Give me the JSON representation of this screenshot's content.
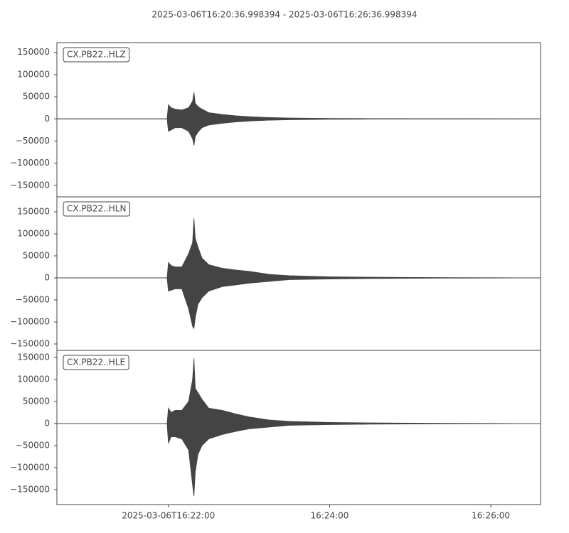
{
  "chart_data": [
    {
      "type": "area",
      "title": "2025-03-06T16:20:36.998394  -  2025-03-06T16:26:36.998394",
      "label": "CX.PB22..HLZ",
      "xlim": [
        "2025-03-06T16:20:36.998394",
        "2025-03-06T16:26:36.998394"
      ],
      "ylim": [
        -176000,
        172000
      ],
      "yticks": [
        {
          "value": -150000,
          "label": "−150000"
        },
        {
          "value": -100000,
          "label": "−100000"
        },
        {
          "value": -50000,
          "label": "−50000"
        },
        0,
        50000,
        100000,
        150000
      ],
      "x": [
        "2025-03-06T16:20:37",
        "2025-03-06T16:21:59",
        "2025-03-06T16:22:00",
        "2025-03-06T16:22:02",
        "2025-03-06T16:22:05",
        "2025-03-06T16:22:10",
        "2025-03-06T16:22:15",
        "2025-03-06T16:22:18",
        "2025-03-06T16:22:19",
        "2025-03-06T16:22:20",
        "2025-03-06T16:22:22",
        "2025-03-06T16:22:25",
        "2025-03-06T16:22:30",
        "2025-03-06T16:22:40",
        "2025-03-06T16:22:50",
        "2025-03-06T16:23:00",
        "2025-03-06T16:23:15",
        "2025-03-06T16:23:30",
        "2025-03-06T16:24:00",
        "2025-03-06T16:24:30",
        "2025-03-06T16:25:00",
        "2025-03-06T16:25:30",
        "2025-03-06T16:26:00",
        "2025-03-06T16:26:36"
      ],
      "series": [
        {
          "color": "#444444",
          "values": [
            0,
            0,
            32000,
            25000,
            22000,
            20000,
            25000,
            40000,
            60000,
            35000,
            28000,
            22000,
            14000,
            10000,
            7000,
            5000,
            3000,
            2000,
            1000,
            600,
            400,
            300,
            200,
            0
          ]
        },
        {
          "color": "#444444",
          "values": [
            0,
            0,
            -28000,
            -25000,
            -20000,
            -20000,
            -28000,
            -45000,
            -60000,
            -40000,
            -30000,
            -20000,
            -14000,
            -10000,
            -7000,
            -5000,
            -3000,
            -2000,
            -1000,
            -600,
            -400,
            -300,
            -200,
            0
          ]
        }
      ]
    },
    {
      "type": "area",
      "label": "CX.PB22..HLN",
      "xlim": [
        "2025-03-06T16:20:36.998394",
        "2025-03-06T16:26:36.998394"
      ],
      "ylim": [
        -164500,
        183900
      ],
      "yticks": [
        {
          "value": -150000,
          "label": "−150000"
        },
        {
          "value": -100000,
          "label": "−100000"
        },
        {
          "value": -50000,
          "label": "−50000"
        },
        0,
        50000,
        100000,
        150000
      ],
      "x": [
        "2025-03-06T16:20:37",
        "2025-03-06T16:21:59",
        "2025-03-06T16:22:00",
        "2025-03-06T16:22:02",
        "2025-03-06T16:22:05",
        "2025-03-06T16:22:10",
        "2025-03-06T16:22:15",
        "2025-03-06T16:22:18",
        "2025-03-06T16:22:19",
        "2025-03-06T16:22:20",
        "2025-03-06T16:22:22",
        "2025-03-06T16:22:25",
        "2025-03-06T16:22:30",
        "2025-03-06T16:22:40",
        "2025-03-06T16:22:50",
        "2025-03-06T16:23:00",
        "2025-03-06T16:23:15",
        "2025-03-06T16:23:30",
        "2025-03-06T16:24:00",
        "2025-03-06T16:24:30",
        "2025-03-06T16:25:00",
        "2025-03-06T16:25:30",
        "2025-03-06T16:26:00",
        "2025-03-06T16:26:36"
      ],
      "series": [
        {
          "color": "#444444",
          "values": [
            0,
            0,
            35000,
            28000,
            25000,
            25000,
            55000,
            80000,
            135000,
            90000,
            70000,
            45000,
            30000,
            22000,
            18000,
            15000,
            8000,
            5000,
            2500,
            1500,
            1000,
            600,
            400,
            0
          ]
        },
        {
          "color": "#444444",
          "values": [
            0,
            0,
            -30000,
            -28000,
            -25000,
            -25000,
            -70000,
            -110000,
            -115000,
            -90000,
            -60000,
            -45000,
            -30000,
            -20000,
            -16000,
            -12000,
            -8000,
            -4000,
            -2500,
            -1500,
            -1000,
            -600,
            -400,
            0
          ]
        }
      ]
    },
    {
      "type": "area",
      "label": "CX.PB22..HLE",
      "xlim": [
        "2025-03-06T16:20:36.998394",
        "2025-03-06T16:26:36.998394"
      ],
      "ylim": [
        -183900,
        166100
      ],
      "yticks": [
        {
          "value": -150000,
          "label": "−150000"
        },
        {
          "value": -100000,
          "label": "−100000"
        },
        {
          "value": -50000,
          "label": "−50000"
        },
        0,
        50000,
        100000,
        150000
      ],
      "xticks": [
        "2025-03-06T16:22:00",
        {
          "value": "2025-03-06T16:24:00",
          "label": "16:24:00"
        },
        {
          "value": "2025-03-06T16:26:00",
          "label": "16:26:00"
        }
      ],
      "x": [
        "2025-03-06T16:20:37",
        "2025-03-06T16:21:59",
        "2025-03-06T16:22:00",
        "2025-03-06T16:22:02",
        "2025-03-06T16:22:05",
        "2025-03-06T16:22:10",
        "2025-03-06T16:22:15",
        "2025-03-06T16:22:18",
        "2025-03-06T16:22:19",
        "2025-03-06T16:22:20",
        "2025-03-06T16:22:22",
        "2025-03-06T16:22:25",
        "2025-03-06T16:22:30",
        "2025-03-06T16:22:40",
        "2025-03-06T16:22:50",
        "2025-03-06T16:23:00",
        "2025-03-06T16:23:15",
        "2025-03-06T16:23:30",
        "2025-03-06T16:24:00",
        "2025-03-06T16:24:30",
        "2025-03-06T16:25:00",
        "2025-03-06T16:25:30",
        "2025-03-06T16:26:00",
        "2025-03-06T16:26:36"
      ],
      "series": [
        {
          "color": "#444444",
          "values": [
            0,
            0,
            35000,
            25000,
            30000,
            30000,
            50000,
            100000,
            148000,
            80000,
            70000,
            55000,
            35000,
            30000,
            22000,
            15000,
            8000,
            5000,
            2500,
            1500,
            1000,
            600,
            400,
            0
          ]
        },
        {
          "color": "#444444",
          "values": [
            0,
            0,
            -45000,
            -30000,
            -30000,
            -35000,
            -60000,
            -140000,
            -165000,
            -110000,
            -70000,
            -50000,
            -35000,
            -25000,
            -18000,
            -12000,
            -8000,
            -4000,
            -2500,
            -1500,
            -1000,
            -600,
            -400,
            0
          ]
        }
      ]
    }
  ]
}
